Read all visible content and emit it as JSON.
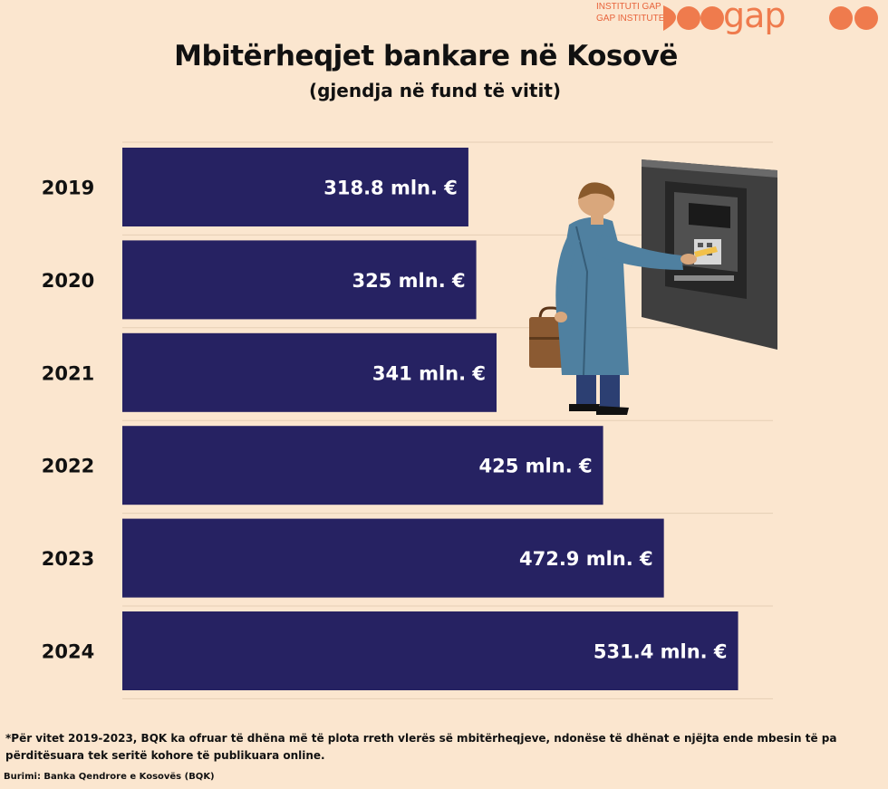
{
  "logo": {
    "line1": "INSTITUTI GAP",
    "line2": "GAP INSTITUTE",
    "word": "gap",
    "brand_color": "#ef7b4d"
  },
  "title": "Mbitërheqjet bankare në Kosovë",
  "subtitle": "(gjendja në fund të vitit)",
  "chart_data": {
    "type": "bar",
    "orientation": "horizontal",
    "categories": [
      "2019",
      "2020",
      "2021",
      "2022",
      "2023",
      "2024"
    ],
    "values": [
      318.8,
      325,
      341,
      425,
      472.9,
      531.4
    ],
    "data_labels": [
      "318.8 mln. €",
      "325 mln. €",
      "341 mln. €",
      "425 mln. €",
      "472.9 mln. €",
      "531.4 mln. €"
    ],
    "bar_color": "#262262",
    "grid": true,
    "xlim": [
      0,
      600
    ]
  },
  "illustration": "person-at-atm-illustration",
  "footnote": "*Për vitet 2019-2023, BQK ka ofruar të dhëna më të plota rreth vlerës së mbitërheqjeve, ndonëse të dhënat e njëjta ende mbesin të pa përditësuara tek seritë kohore të publikuara online.",
  "source": "Burimi: Banka Qendrore e Kosovës (BQK)"
}
